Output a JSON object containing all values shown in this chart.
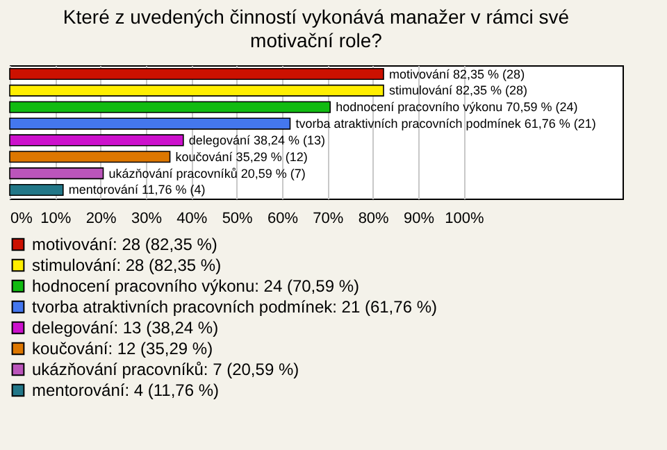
{
  "chart_data": {
    "type": "bar",
    "orientation": "horizontal",
    "title": "Které z uvedených činností vykonává manažer v rámci své motivační role?",
    "categories": [
      null,
      null,
      null,
      null,
      null,
      null,
      null,
      null
    ],
    "series": [
      {
        "name": "motivování: 28 (82,35 %)",
        "color": "#cc1100",
        "values": [
          82.35,
          null,
          null,
          null,
          null,
          null,
          null,
          null
        ],
        "value_labels": [
          "motivování 82,35 % (28)",
          null,
          null,
          null,
          null,
          null,
          null,
          null
        ]
      },
      {
        "name": "stimulování: 28 (82,35 %)",
        "color": "#ffee00",
        "values": [
          null,
          82.35,
          null,
          null,
          null,
          null,
          null,
          null
        ],
        "value_labels": [
          null,
          "stimulování 82,35 % (28)",
          null,
          null,
          null,
          null,
          null,
          null
        ]
      },
      {
        "name": "hodnocení pracovního výkonu: 24 (70,59 %)",
        "color": "#11bb11",
        "values": [
          null,
          null,
          70.59,
          null,
          null,
          null,
          null,
          null
        ],
        "value_labels": [
          null,
          null,
          "hodnocení pracovního výkonu 70,59 % (24)",
          null,
          null,
          null,
          null,
          null
        ]
      },
      {
        "name": "tvorba atraktivních pracovních podmínek: 21 (61,76 %)",
        "color": "#4477ee",
        "values": [
          null,
          null,
          null,
          61.76,
          null,
          null,
          null,
          null
        ],
        "value_labels": [
          null,
          null,
          null,
          "tvorba atraktivních pracovních podmínek 61,76 % (21)",
          null,
          null,
          null,
          null
        ]
      },
      {
        "name": "delegování: 13 (38,24 %)",
        "color": "#cc11cc",
        "values": [
          null,
          null,
          null,
          null,
          38.24,
          null,
          null,
          null
        ],
        "value_labels": [
          null,
          null,
          null,
          null,
          "delegování 38,24 % (13)",
          null,
          null,
          null
        ]
      },
      {
        "name": "koučování: 12 (35,29 %)",
        "color": "#dd7700",
        "values": [
          null,
          null,
          null,
          null,
          null,
          35.29,
          null,
          null
        ],
        "value_labels": [
          null,
          null,
          null,
          null,
          null,
          "koučování 35,29 % (12)",
          null,
          null
        ]
      },
      {
        "name": "ukázňování pracovníků: 7 (20,59 %)",
        "color": "#bb55bb",
        "values": [
          null,
          null,
          null,
          null,
          null,
          null,
          20.59,
          null
        ],
        "value_labels": [
          null,
          null,
          null,
          null,
          null,
          null,
          "ukázňování pracovníků 20,59 % (7)",
          null
        ]
      },
      {
        "name": "mentorování: 4 (11,76 %)",
        "color": "#227788",
        "values": [
          null,
          null,
          null,
          null,
          null,
          null,
          null,
          11.76
        ],
        "value_labels": [
          null,
          null,
          null,
          null,
          null,
          null,
          null,
          "mentorování 11,76 % (4)"
        ]
      }
    ],
    "xlim": [
      0,
      135
    ],
    "xticks": [
      {
        "value": 0,
        "label": "0%"
      },
      {
        "value": 10,
        "label": "10%"
      },
      {
        "value": 20,
        "label": "20%"
      },
      {
        "value": 30,
        "label": "30%"
      },
      {
        "value": 40,
        "label": "40%"
      },
      {
        "value": 50,
        "label": "50%"
      },
      {
        "value": 60,
        "label": "60%"
      },
      {
        "value": 70,
        "label": "70%"
      },
      {
        "value": 80,
        "label": "80%"
      },
      {
        "value": 90,
        "label": "90%"
      },
      {
        "value": 100,
        "label": "100%"
      }
    ],
    "grid": "x",
    "legend": "bottom",
    "tick_labels": "x"
  }
}
